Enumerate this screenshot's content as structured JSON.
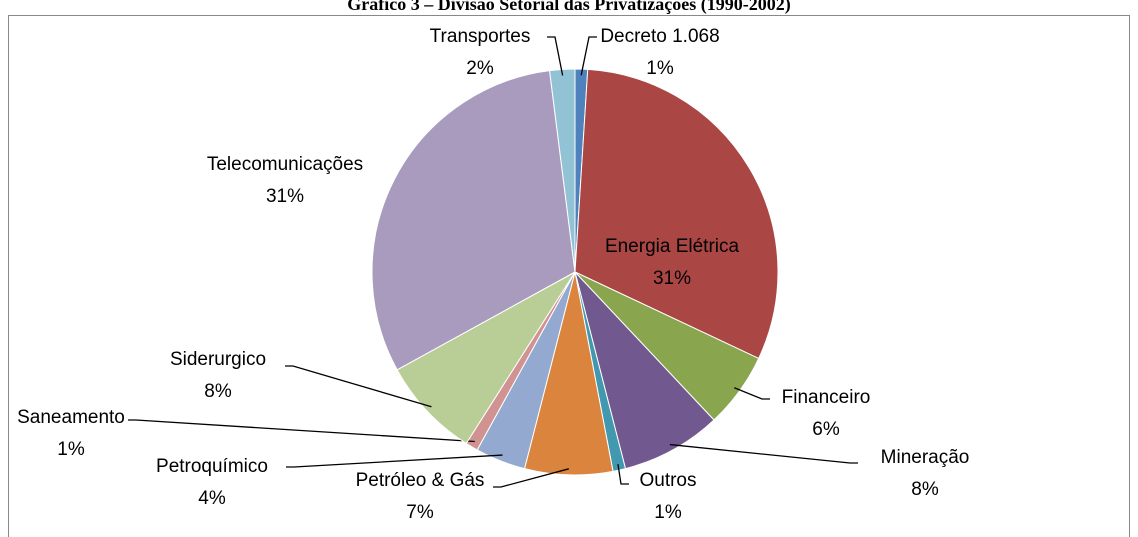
{
  "chart_data": {
    "type": "pie",
    "title": "Gráfico 3 – Divisão Setorial das Privatizações (1990-2002)",
    "categories": [
      "Decreto 1.068",
      "Energia Elétrica",
      "Financeiro",
      "Mineração",
      "Outros",
      "Petróleo & Gás",
      "Petroquímico",
      "Saneamento",
      "Siderurgico",
      "Telecomunicações",
      "Transportes"
    ],
    "values": [
      1,
      31,
      6,
      8,
      1,
      7,
      4,
      1,
      8,
      31,
      2
    ],
    "value_labels": [
      "1%",
      "31%",
      "6%",
      "8%",
      "1%",
      "7%",
      "4%",
      "1%",
      "8%",
      "31%",
      "2%"
    ],
    "colors": [
      "#4f81bd",
      "#aa4644",
      "#89a54e",
      "#71588f",
      "#4198af",
      "#db843d",
      "#93a9cf",
      "#d19392",
      "#b9cd96",
      "#a99bbd",
      "#92c3d5"
    ]
  }
}
